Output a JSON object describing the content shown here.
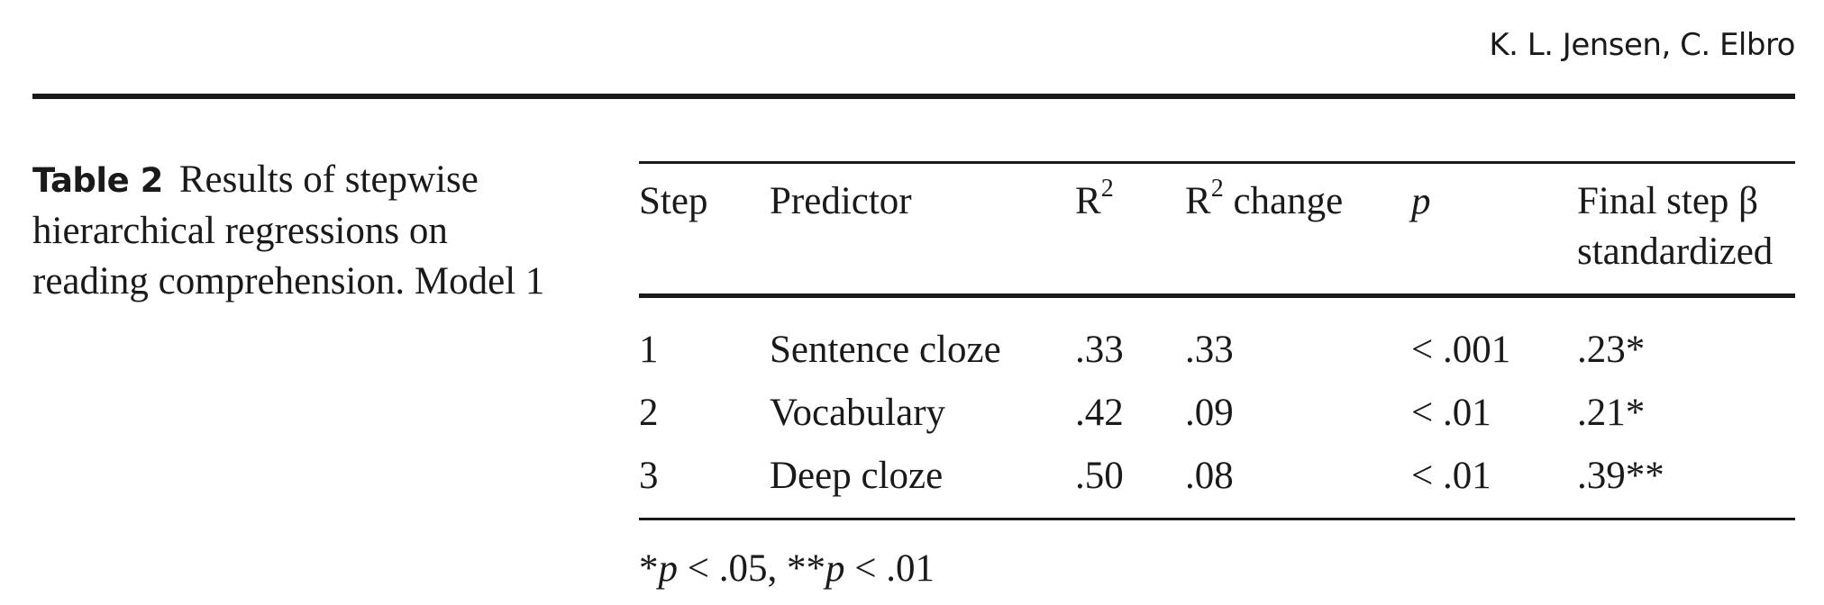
{
  "running_head": "K. L. Jensen, C. Elbro",
  "caption": {
    "label": "Table 2",
    "text": "Results of stepwise hierarchical regressions on reading comprehension. Model 1"
  },
  "table": {
    "headers": {
      "step": "Step",
      "predictor": "Predictor",
      "r2_base": "R",
      "r2_sup": "2",
      "r2change_base": "R",
      "r2change_sup": "2",
      "r2change_rest": " change",
      "p": "p",
      "beta_line1": "Final step β",
      "beta_line2": "standardized"
    },
    "rows": [
      {
        "step": "1",
        "predictor": "Sentence cloze",
        "r2": ".33",
        "r2_change": ".33",
        "p": "< .001",
        "beta": ".23*"
      },
      {
        "step": "2",
        "predictor": "Vocabulary",
        "r2": ".42",
        "r2_change": ".09",
        "p": "< .01",
        "beta": ".21*"
      },
      {
        "step": "3",
        "predictor": "Deep cloze",
        "r2": ".50",
        "r2_change": ".08",
        "p": "< .01",
        "beta": ".39**"
      }
    ],
    "footnote": {
      "star1": "*",
      "p1": "p",
      "rest1": " < .05, **",
      "p2": "p",
      "rest2": " < .01"
    }
  }
}
